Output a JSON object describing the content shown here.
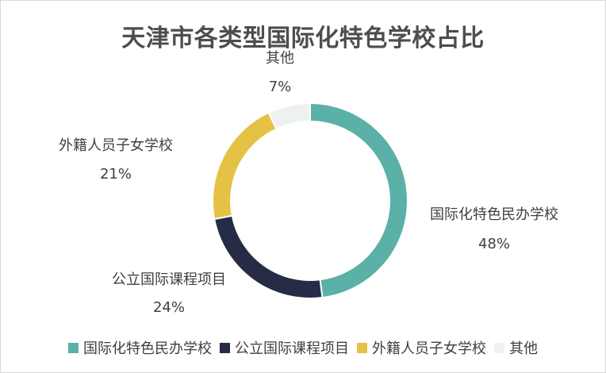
{
  "chart_data": {
    "type": "pie",
    "variant": "donut",
    "title": "天津市各类型国际化特色学校占比",
    "categories": [
      "国际化特色民办学校",
      "公立国际课程项目",
      "外籍人员子女学校",
      "其他"
    ],
    "values": [
      48,
      24,
      21,
      7
    ],
    "value_labels": [
      "48%",
      "24%",
      "21%",
      "7%"
    ],
    "colors": [
      "#5bb0a8",
      "#262c45",
      "#e6c244",
      "#eef2ef"
    ],
    "legend_position": "bottom",
    "grid": false
  }
}
